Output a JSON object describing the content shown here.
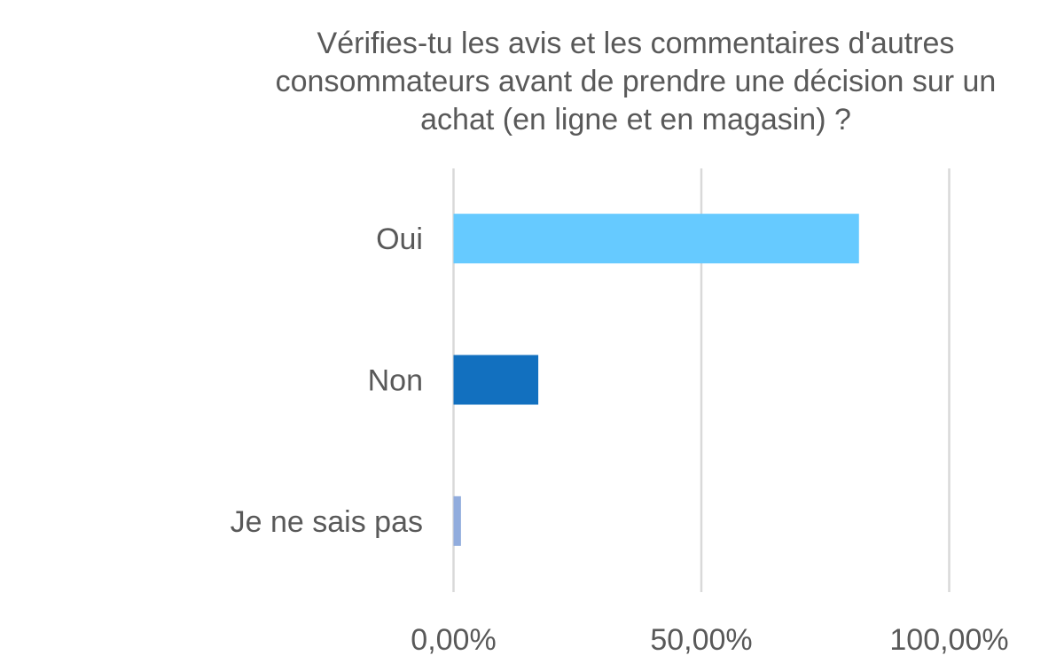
{
  "chart_data": {
    "type": "bar",
    "orientation": "horizontal",
    "title_lines": [
      "Vérifies-tu les avis et les commentaires d'autres",
      "consommateurs avant de prendre une décision sur un",
      "achat (en ligne et en magasin) ?"
    ],
    "categories": [
      "Oui",
      "Non",
      "Je ne sais pas"
    ],
    "values": [
      81.8,
      17.1,
      1.5
    ],
    "colors": [
      "#66CAFF",
      "#1270BF",
      "#91ACDD"
    ],
    "xlim": [
      0,
      100
    ],
    "xticks": [
      0,
      50,
      100
    ],
    "xtick_labels": [
      "0,00%",
      "50,00%",
      "100,00%"
    ],
    "grid": true,
    "legend": "none"
  }
}
